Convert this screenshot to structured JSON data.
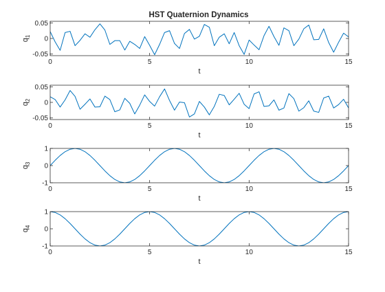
{
  "chart_data": {
    "type": "line",
    "title": "HST Quaternion Dynamics",
    "line_color": "#0072BD",
    "axis_color": "#262626",
    "grid": false,
    "subplots": [
      {
        "id": "q1",
        "ylabel_base": "q",
        "ylabel_sub": "1",
        "xlabel": "t",
        "xlim": [
          0,
          15
        ],
        "ylim": [
          -0.055,
          0.055
        ],
        "xticks": [
          0,
          5,
          10,
          15
        ],
        "yticks": [
          -0.05,
          0,
          0.05
        ],
        "ytick_labels": [
          "-0.05",
          "0",
          "0.05"
        ],
        "series": [
          {
            "x": [
              0,
              0.25,
              0.5,
              0.75,
              1,
              1.25,
              1.5,
              1.75,
              2,
              2.25,
              2.5,
              2.75,
              3,
              3.25,
              3.5,
              3.75,
              4,
              4.25,
              4.5,
              4.75,
              5,
              5.25,
              5.5,
              5.75,
              6,
              6.25,
              6.5,
              6.75,
              7,
              7.25,
              7.5,
              7.75,
              8,
              8.25,
              8.5,
              8.75,
              9,
              9.25,
              9.5,
              9.75,
              10,
              10.25,
              10.5,
              10.75,
              11,
              11.25,
              11.5,
              11.75,
              12,
              12.25,
              12.5,
              12.75,
              13,
              13.25,
              13.5,
              13.75,
              14,
              14.25,
              14.5,
              14.75,
              15
            ],
            "y": [
              0.022,
              -0.011,
              -0.038,
              0.019,
              0.023,
              -0.023,
              -0.006,
              0.015,
              0.004,
              0.028,
              0.047,
              0.027,
              -0.019,
              -0.007,
              -0.007,
              -0.037,
              -0.009,
              -0.019,
              -0.032,
              0.006,
              -0.022,
              -0.052,
              -0.019,
              0.019,
              0.025,
              -0.016,
              -0.032,
              0.016,
              0.029,
              -0.002,
              0.007,
              0.045,
              0.036,
              -0.023,
              0.004,
              0.015,
              -0.017,
              0.019,
              -0.023,
              -0.051,
              -0.005,
              -0.021,
              -0.036,
              0.009,
              0.039,
              0.006,
              -0.022,
              0.034,
              0.025,
              -0.023,
              -0.002,
              0.031,
              0.043,
              -0.004,
              -0.003,
              0.031,
              -0.013,
              -0.044,
              -0.012,
              0.017,
              0.005
            ]
          }
        ]
      },
      {
        "id": "q2",
        "ylabel_base": "q",
        "ylabel_sub": "2",
        "xlabel": "t",
        "xlim": [
          0,
          15
        ],
        "ylim": [
          -0.055,
          0.055
        ],
        "xticks": [
          0,
          5,
          10,
          15
        ],
        "yticks": [
          -0.05,
          0,
          0.05
        ],
        "ytick_labels": [
          "-0.05",
          "0",
          "0.05"
        ],
        "series": [
          {
            "x": [
              0,
              0.25,
              0.5,
              0.75,
              1,
              1.25,
              1.5,
              1.75,
              2,
              2.25,
              2.5,
              2.75,
              3,
              3.25,
              3.5,
              3.75,
              4,
              4.25,
              4.5,
              4.75,
              5,
              5.25,
              5.5,
              5.75,
              6,
              6.25,
              6.5,
              6.75,
              7,
              7.25,
              7.5,
              7.75,
              8,
              8.25,
              8.5,
              8.75,
              9,
              9.25,
              9.5,
              9.75,
              10,
              10.25,
              10.5,
              10.75,
              11,
              11.25,
              11.5,
              11.75,
              12,
              12.25,
              12.5,
              12.75,
              13,
              13.25,
              13.5,
              13.75,
              14,
              14.25,
              14.5,
              14.75,
              15
            ],
            "y": [
              0.018,
              0.009,
              -0.015,
              0.008,
              0.038,
              0.019,
              -0.022,
              -0.006,
              0.011,
              -0.015,
              -0.014,
              0.02,
              0.009,
              -0.03,
              -0.024,
              0.013,
              -0.003,
              -0.037,
              -0.009,
              0.024,
              0.003,
              -0.012,
              0.018,
              0.043,
              0.006,
              -0.025,
              0.001,
              -0.001,
              -0.047,
              -0.037,
              0.003,
              -0.015,
              -0.04,
              -0.013,
              0.026,
              0.022,
              -0.008,
              0.01,
              0.029,
              -0.006,
              -0.02,
              0.027,
              0.034,
              -0.013,
              -0.011,
              0.008,
              -0.025,
              -0.018,
              0.028,
              0.012,
              -0.028,
              -0.017,
              0.005,
              -0.028,
              -0.032,
              0.014,
              0.02,
              -0.018,
              -0.007,
              0.01,
              -0.018
            ]
          }
        ]
      },
      {
        "id": "q3",
        "ylabel_base": "q",
        "ylabel_sub": "3",
        "xlabel": "t",
        "xlim": [
          0,
          15
        ],
        "ylim": [
          -1,
          1
        ],
        "xticks": [
          0,
          5,
          10,
          15
        ],
        "yticks": [
          -1,
          0,
          1
        ],
        "ytick_labels": [
          "-1",
          "0",
          "1"
        ],
        "series": [
          {
            "x": [
              0,
              0.25,
              0.5,
              0.75,
              1,
              1.25,
              1.5,
              1.75,
              2,
              2.25,
              2.5,
              2.75,
              3,
              3.25,
              3.5,
              3.75,
              4,
              4.25,
              4.5,
              4.75,
              5,
              5.25,
              5.5,
              5.75,
              6,
              6.25,
              6.5,
              6.75,
              7,
              7.25,
              7.5,
              7.75,
              8,
              8.25,
              8.5,
              8.75,
              9,
              9.25,
              9.5,
              9.75,
              10,
              10.25,
              10.5,
              10.75,
              11,
              11.25,
              11.5,
              11.75,
              12,
              12.25,
              12.5,
              12.75,
              13,
              13.25,
              13.5,
              13.75,
              14,
              14.25,
              14.5,
              14.75,
              15
            ],
            "y": [
              0,
              0.309,
              0.588,
              0.809,
              0.951,
              1,
              0.951,
              0.809,
              0.588,
              0.309,
              0,
              -0.309,
              -0.588,
              -0.809,
              -0.951,
              -1,
              -0.951,
              -0.809,
              -0.588,
              -0.309,
              0,
              0.309,
              0.588,
              0.809,
              0.951,
              1,
              0.951,
              0.809,
              0.588,
              0.309,
              0,
              -0.309,
              -0.588,
              -0.809,
              -0.951,
              -1,
              -0.951,
              -0.809,
              -0.588,
              -0.309,
              0,
              0.309,
              0.588,
              0.809,
              0.951,
              1,
              0.951,
              0.809,
              0.588,
              0.309,
              0,
              -0.309,
              -0.588,
              -0.809,
              -0.951,
              -1,
              -0.951,
              -0.809,
              -0.588,
              -0.309,
              0
            ]
          }
        ]
      },
      {
        "id": "q4",
        "ylabel_base": "q",
        "ylabel_sub": "4",
        "xlabel": "t",
        "xlim": [
          0,
          15
        ],
        "ylim": [
          -1,
          1
        ],
        "xticks": [
          0,
          5,
          10,
          15
        ],
        "yticks": [
          -1,
          0,
          1
        ],
        "ytick_labels": [
          "-1",
          "0",
          "1"
        ],
        "series": [
          {
            "x": [
              0,
              0.25,
              0.5,
              0.75,
              1,
              1.25,
              1.5,
              1.75,
              2,
              2.25,
              2.5,
              2.75,
              3,
              3.25,
              3.5,
              3.75,
              4,
              4.25,
              4.5,
              4.75,
              5,
              5.25,
              5.5,
              5.75,
              6,
              6.25,
              6.5,
              6.75,
              7,
              7.25,
              7.5,
              7.75,
              8,
              8.25,
              8.5,
              8.75,
              9,
              9.25,
              9.5,
              9.75,
              10,
              10.25,
              10.5,
              10.75,
              11,
              11.25,
              11.5,
              11.75,
              12,
              12.25,
              12.5,
              12.75,
              13,
              13.25,
              13.5,
              13.75,
              14,
              14.25,
              14.5,
              14.75,
              15
            ],
            "y": [
              1,
              0.951,
              0.809,
              0.588,
              0.309,
              0,
              -0.309,
              -0.588,
              -0.809,
              -0.951,
              -1,
              -0.951,
              -0.809,
              -0.588,
              -0.309,
              0,
              0.309,
              0.588,
              0.809,
              0.951,
              1,
              0.951,
              0.809,
              0.588,
              0.309,
              0,
              -0.309,
              -0.588,
              -0.809,
              -0.951,
              -1,
              -0.951,
              -0.809,
              -0.588,
              -0.309,
              0,
              0.309,
              0.588,
              0.809,
              0.951,
              1,
              0.951,
              0.809,
              0.588,
              0.309,
              0,
              -0.309,
              -0.588,
              -0.809,
              -0.951,
              -1,
              -0.951,
              -0.809,
              -0.588,
              -0.309,
              0,
              0.309,
              0.588,
              0.809,
              0.951,
              1
            ]
          }
        ]
      }
    ]
  }
}
